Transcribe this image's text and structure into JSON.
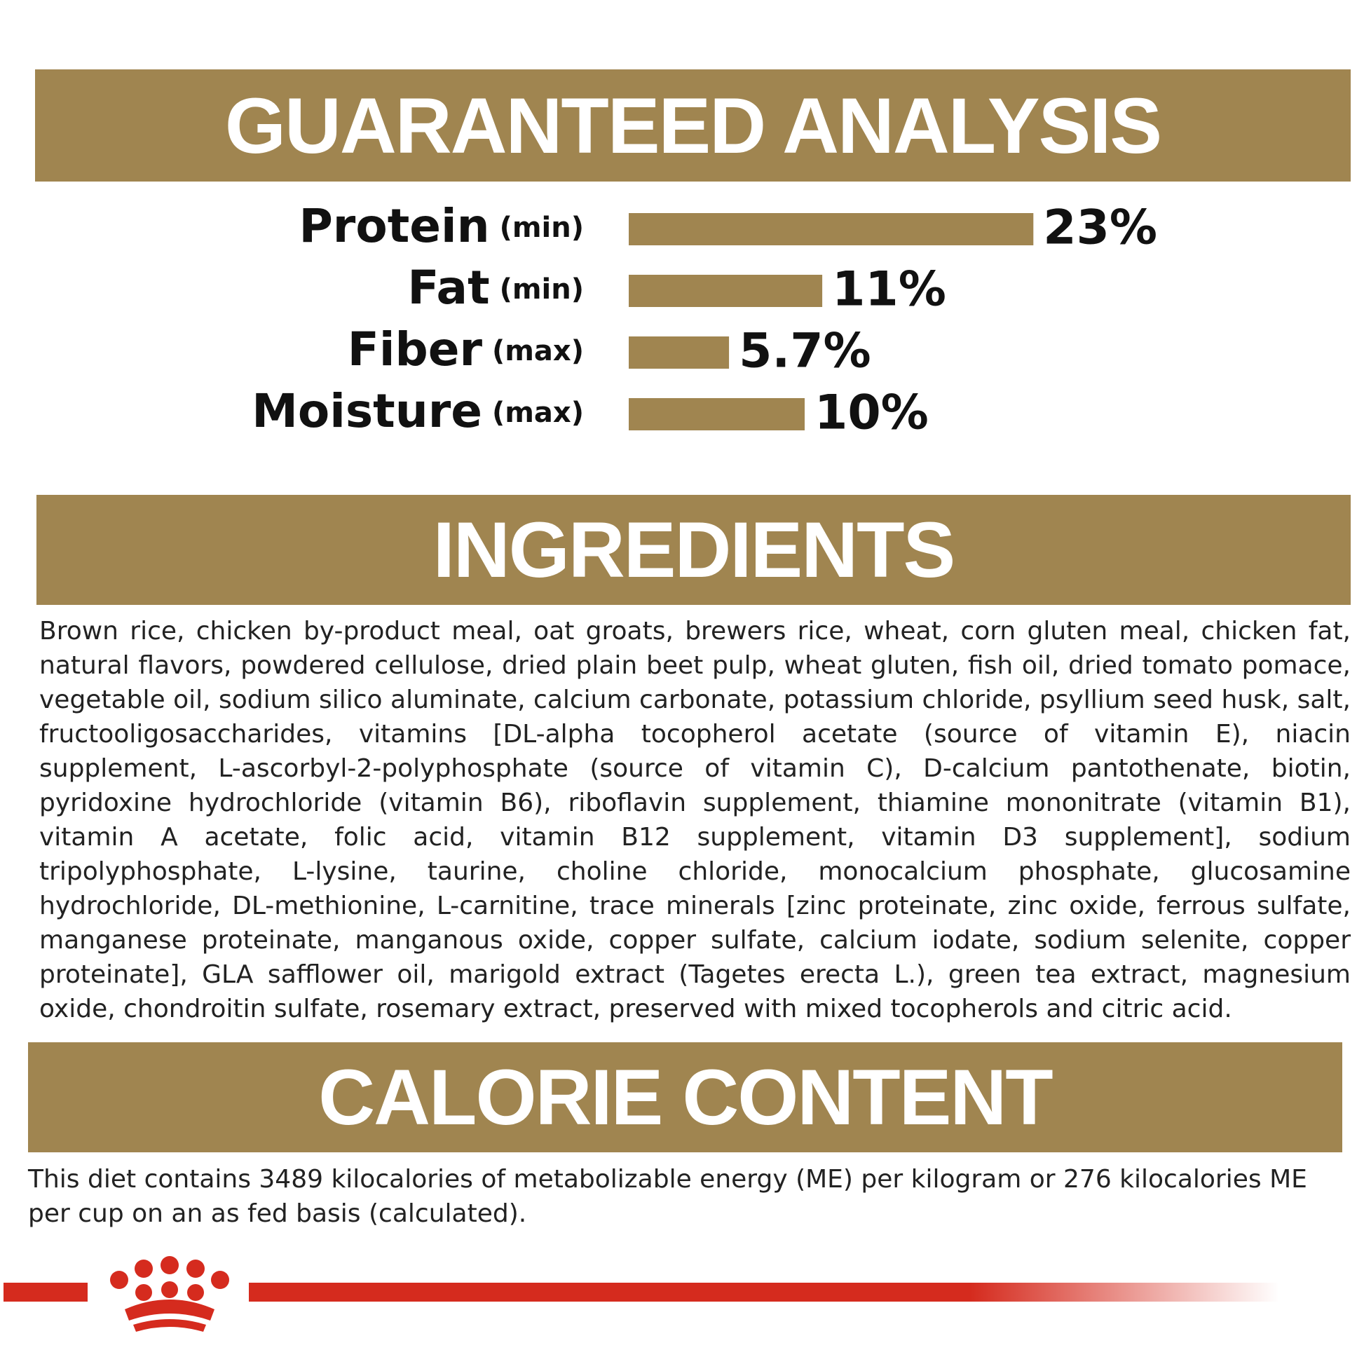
{
  "guaranteed_analysis": {
    "title": "GUARANTEED ANALYSIS",
    "rows": [
      {
        "nutrient": "Protein",
        "qualifier": "(min)",
        "value": 23,
        "value_label": "23%"
      },
      {
        "nutrient": "Fat",
        "qualifier": "(min)",
        "value": 11,
        "value_label": "11%"
      },
      {
        "nutrient": "Fiber",
        "qualifier": "(max)",
        "value": 5.7,
        "value_label": "5.7%"
      },
      {
        "nutrient": "Moisture",
        "qualifier": "(max)",
        "value": 10,
        "value_label": "10%"
      }
    ]
  },
  "ingredients": {
    "title": "INGREDIENTS",
    "text": "Brown rice, chicken by-product meal, oat groats, brewers rice, wheat, corn gluten meal, chicken fat, natural flavors, powdered cellulose, dried plain beet pulp, wheat gluten, fish oil, dried tomato pomace, vegetable oil, sodium silico aluminate, calcium carbonate, potassium chloride, psyllium seed husk, salt, fructooligosaccharides, vitamins [DL-alpha tocopherol acetate (source of vitamin E), niacin supplement, L-ascorbyl-2-polyphosphate (source of vitamin C), D-calcium pantothenate, biotin, pyridoxine hydrochloride (vitamin B6), riboflavin supplement, thiamine mononitrate (vitamin B1), vitamin A acetate, folic acid, vitamin B12 supplement, vitamin D3 supplement], sodium tripolyphosphate, L-lysine, taurine, choline chloride, monocalcium phosphate, glucosamine hydrochloride, DL-methionine, L-carnitine, trace minerals [zinc proteinate, zinc oxide, ferrous sulfate, manganese proteinate, manganous oxide, copper sulfate, calcium iodate, sodium selenite, copper proteinate], GLA safflower oil, marigold extract (Tagetes erecta L.), green tea extract, magnesium oxide, chondroitin sulfate, rosemary extract, preserved with mixed tocopherols and citric acid."
  },
  "calorie_content": {
    "title": "CALORIE CONTENT",
    "text": "This diet contains 3489 kilocalories of metabolizable energy (ME) per kilogram or 276 kilocalories ME per cup on an as fed basis (calculated)."
  }
}
